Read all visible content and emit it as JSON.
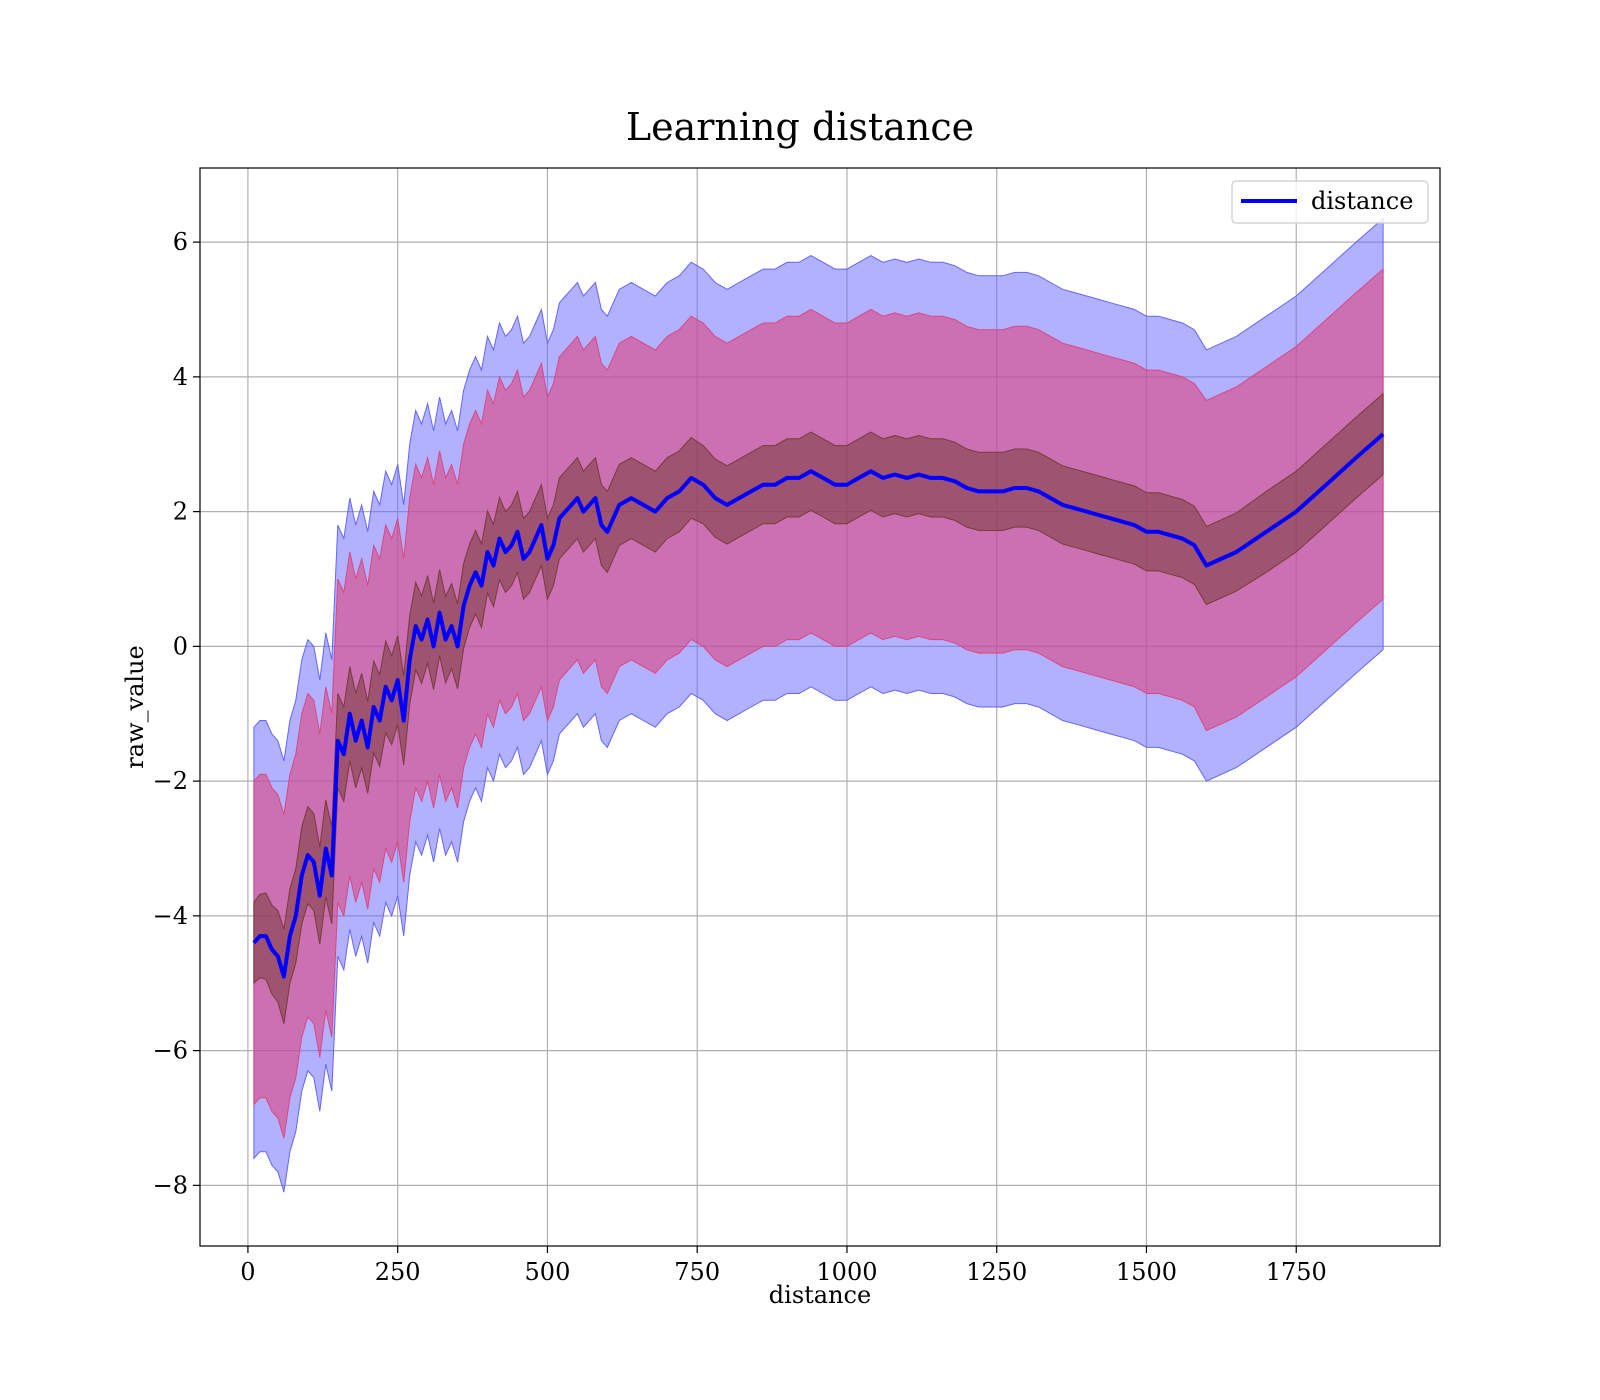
{
  "chart_data": {
    "type": "line",
    "title": "Learning distance",
    "xlabel": "distance",
    "ylabel": "raw_value",
    "xlim": [
      -80,
      1990
    ],
    "ylim": [
      -8.9,
      7.1
    ],
    "xticks": [
      0,
      250,
      500,
      750,
      1000,
      1250,
      1500,
      1750
    ],
    "yticks": [
      -8,
      -6,
      -4,
      -2,
      0,
      2,
      4,
      6
    ],
    "xtick_labels": [
      "0",
      "250",
      "500",
      "750",
      "1000",
      "1250",
      "1500",
      "1750"
    ],
    "ytick_labels": [
      "−8",
      "−6",
      "−4",
      "−2",
      "0",
      "2",
      "4",
      "6"
    ],
    "grid": true,
    "legend": {
      "position": "top-right",
      "entries": [
        "distance"
      ]
    },
    "colors": {
      "line": "#0000ff",
      "outer_band": "#6464ff",
      "middle_band": "#dc4680",
      "inner_band": "#7a3a3a"
    },
    "series": [
      {
        "name": "distance",
        "x": [
          10,
          20,
          30,
          40,
          50,
          60,
          70,
          80,
          90,
          100,
          110,
          120,
          130,
          140,
          150,
          160,
          170,
          180,
          190,
          200,
          210,
          220,
          230,
          240,
          250,
          260,
          270,
          280,
          290,
          300,
          310,
          320,
          330,
          340,
          350,
          360,
          370,
          380,
          390,
          400,
          410,
          420,
          430,
          440,
          450,
          460,
          470,
          480,
          490,
          500,
          510,
          520,
          530,
          540,
          550,
          560,
          570,
          580,
          590,
          600,
          620,
          640,
          660,
          680,
          700,
          720,
          740,
          760,
          780,
          800,
          820,
          840,
          860,
          880,
          900,
          920,
          940,
          960,
          980,
          1000,
          1020,
          1040,
          1060,
          1080,
          1100,
          1120,
          1140,
          1160,
          1180,
          1200,
          1220,
          1240,
          1260,
          1280,
          1300,
          1320,
          1340,
          1360,
          1380,
          1400,
          1420,
          1440,
          1460,
          1480,
          1500,
          1520,
          1540,
          1560,
          1580,
          1600,
          1650,
          1700,
          1750,
          1800,
          1850,
          1895
        ],
        "y": [
          -4.4,
          -4.3,
          -4.3,
          -4.5,
          -4.6,
          -4.9,
          -4.3,
          -4.0,
          -3.4,
          -3.1,
          -3.2,
          -3.7,
          -3.0,
          -3.4,
          -1.4,
          -1.6,
          -1.0,
          -1.4,
          -1.1,
          -1.5,
          -0.9,
          -1.1,
          -0.6,
          -0.8,
          -0.5,
          -1.1,
          -0.2,
          0.3,
          0.1,
          0.4,
          0.0,
          0.5,
          0.1,
          0.3,
          0.0,
          0.6,
          0.9,
          1.1,
          0.9,
          1.4,
          1.2,
          1.6,
          1.4,
          1.5,
          1.7,
          1.3,
          1.4,
          1.6,
          1.8,
          1.3,
          1.5,
          1.9,
          2.0,
          2.1,
          2.2,
          2.0,
          2.1,
          2.2,
          1.8,
          1.7,
          2.1,
          2.2,
          2.1,
          2.0,
          2.2,
          2.3,
          2.5,
          2.4,
          2.2,
          2.1,
          2.2,
          2.3,
          2.4,
          2.4,
          2.5,
          2.5,
          2.6,
          2.5,
          2.4,
          2.4,
          2.5,
          2.6,
          2.5,
          2.55,
          2.5,
          2.55,
          2.5,
          2.5,
          2.45,
          2.35,
          2.3,
          2.3,
          2.3,
          2.35,
          2.35,
          2.3,
          2.2,
          2.1,
          2.05,
          2.0,
          1.95,
          1.9,
          1.85,
          1.8,
          1.7,
          1.7,
          1.65,
          1.6,
          1.5,
          1.2,
          1.4,
          1.7,
          2.0,
          2.4,
          2.8,
          3.15
        ],
        "inner_half_width": [
          0.6,
          0.62,
          0.64,
          0.66,
          0.68,
          0.7,
          0.7,
          0.7,
          0.72,
          0.72,
          0.72,
          0.72,
          0.72,
          0.72,
          0.7,
          0.7,
          0.7,
          0.7,
          0.7,
          0.68,
          0.68,
          0.68,
          0.68,
          0.66,
          0.66,
          0.66,
          0.66,
          0.65,
          0.65,
          0.65,
          0.64,
          0.64,
          0.64,
          0.63,
          0.63,
          0.63,
          0.62,
          0.62,
          0.62,
          0.61,
          0.61,
          0.61,
          0.6,
          0.6,
          0.6,
          0.6,
          0.6,
          0.6,
          0.6,
          0.6,
          0.6,
          0.6,
          0.6,
          0.6,
          0.6,
          0.6,
          0.6,
          0.6,
          0.6,
          0.6,
          0.6,
          0.6,
          0.6,
          0.6,
          0.6,
          0.6,
          0.6,
          0.58,
          0.58,
          0.58,
          0.58,
          0.58,
          0.58,
          0.58,
          0.58,
          0.58,
          0.58,
          0.58,
          0.58,
          0.58,
          0.58,
          0.58,
          0.58,
          0.58,
          0.58,
          0.58,
          0.58,
          0.58,
          0.58,
          0.58,
          0.58,
          0.58,
          0.58,
          0.58,
          0.58,
          0.58,
          0.58,
          0.58,
          0.58,
          0.58,
          0.58,
          0.58,
          0.58,
          0.58,
          0.58,
          0.58,
          0.58,
          0.58,
          0.58,
          0.58,
          0.58,
          0.6,
          0.6,
          0.6,
          0.6,
          0.6
        ],
        "middle_half_width": [
          2.4,
          2.4,
          2.4,
          2.4,
          2.4,
          2.4,
          2.4,
          2.4,
          2.4,
          2.4,
          2.4,
          2.4,
          2.4,
          2.4,
          2.4,
          2.4,
          2.4,
          2.4,
          2.4,
          2.4,
          2.4,
          2.4,
          2.4,
          2.4,
          2.4,
          2.4,
          2.4,
          2.4,
          2.4,
          2.4,
          2.4,
          2.4,
          2.4,
          2.4,
          2.4,
          2.4,
          2.4,
          2.4,
          2.4,
          2.4,
          2.4,
          2.4,
          2.4,
          2.4,
          2.4,
          2.4,
          2.4,
          2.4,
          2.4,
          2.4,
          2.4,
          2.4,
          2.4,
          2.4,
          2.4,
          2.4,
          2.4,
          2.4,
          2.4,
          2.4,
          2.4,
          2.4,
          2.4,
          2.4,
          2.4,
          2.4,
          2.4,
          2.4,
          2.4,
          2.4,
          2.4,
          2.4,
          2.4,
          2.4,
          2.4,
          2.4,
          2.4,
          2.4,
          2.4,
          2.4,
          2.4,
          2.4,
          2.4,
          2.4,
          2.4,
          2.4,
          2.4,
          2.4,
          2.4,
          2.4,
          2.4,
          2.4,
          2.4,
          2.4,
          2.4,
          2.4,
          2.4,
          2.4,
          2.4,
          2.4,
          2.4,
          2.4,
          2.4,
          2.4,
          2.4,
          2.4,
          2.4,
          2.4,
          2.4,
          2.45,
          2.45,
          2.45,
          2.45,
          2.45,
          2.45,
          2.45
        ],
        "outer_half_width": [
          3.2,
          3.2,
          3.2,
          3.2,
          3.2,
          3.2,
          3.2,
          3.2,
          3.2,
          3.2,
          3.2,
          3.2,
          3.2,
          3.2,
          3.2,
          3.2,
          3.2,
          3.2,
          3.2,
          3.2,
          3.2,
          3.2,
          3.2,
          3.2,
          3.2,
          3.2,
          3.2,
          3.2,
          3.2,
          3.2,
          3.2,
          3.2,
          3.2,
          3.2,
          3.2,
          3.2,
          3.2,
          3.2,
          3.2,
          3.2,
          3.2,
          3.2,
          3.2,
          3.2,
          3.2,
          3.2,
          3.2,
          3.2,
          3.2,
          3.2,
          3.2,
          3.2,
          3.2,
          3.2,
          3.2,
          3.2,
          3.2,
          3.2,
          3.2,
          3.2,
          3.2,
          3.2,
          3.2,
          3.2,
          3.2,
          3.2,
          3.2,
          3.2,
          3.2,
          3.2,
          3.2,
          3.2,
          3.2,
          3.2,
          3.2,
          3.2,
          3.2,
          3.2,
          3.2,
          3.2,
          3.2,
          3.2,
          3.2,
          3.2,
          3.2,
          3.2,
          3.2,
          3.2,
          3.2,
          3.2,
          3.2,
          3.2,
          3.2,
          3.2,
          3.2,
          3.2,
          3.2,
          3.2,
          3.2,
          3.2,
          3.2,
          3.2,
          3.2,
          3.2,
          3.2,
          3.2,
          3.2,
          3.2,
          3.2,
          3.2,
          3.2,
          3.2,
          3.2,
          3.2,
          3.2,
          3.2
        ]
      }
    ]
  }
}
